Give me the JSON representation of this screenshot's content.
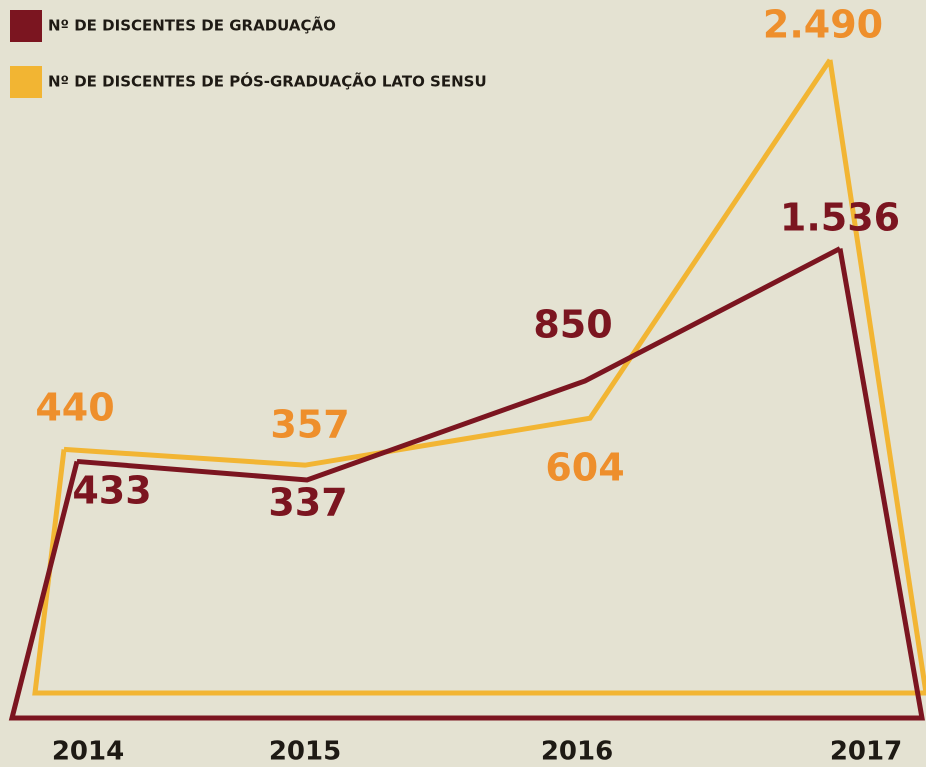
{
  "chart_data": {
    "type": "line",
    "categories": [
      "2014",
      "2015",
      "2016",
      "2017"
    ],
    "series": [
      {
        "name": "Nº DE DISCENTES DE GRADUAÇÃO",
        "color": "#7b1520",
        "label_color": "#7b1520",
        "values": [
          433,
          337,
          850,
          1536
        ],
        "value_labels": [
          "433",
          "337",
          "850",
          "1.536"
        ]
      },
      {
        "name": "Nº DE DISCENTES DE PÓS-GRADUAÇÃO LATO SENSU",
        "color": "#f2b533",
        "label_color": "#ee8f2c",
        "values": [
          440,
          357,
          604,
          2490
        ],
        "value_labels": [
          "440",
          "357",
          "604",
          "2.490"
        ]
      }
    ]
  }
}
